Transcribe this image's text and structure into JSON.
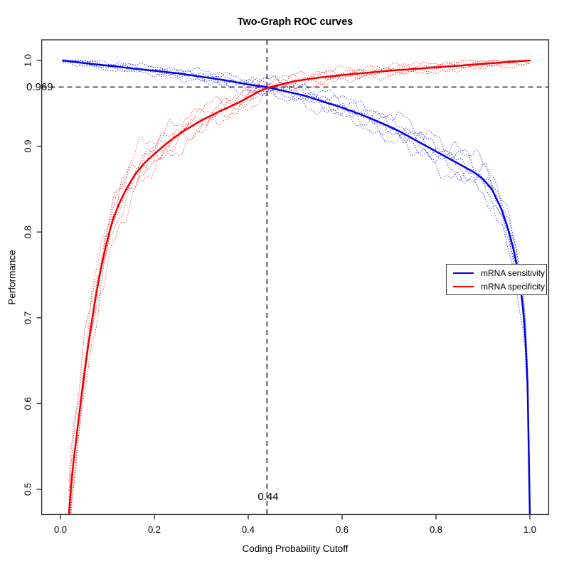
{
  "chart_data": {
    "type": "line",
    "title": "Two-Graph ROC curves",
    "xlabel": "Coding Probability Cutoff",
    "ylabel": "Performance",
    "xlim": [
      0.0,
      1.0
    ],
    "ylim": [
      0.471,
      1.0
    ],
    "grid": false,
    "frame_color": "#333333",
    "x_ticks": [
      {
        "v": 0.0,
        "label": "0.0"
      },
      {
        "v": 0.2,
        "label": "0.2"
      },
      {
        "v": 0.4,
        "label": "0.4"
      },
      {
        "v": 0.6,
        "label": "0.6"
      },
      {
        "v": 0.8,
        "label": "0.8"
      },
      {
        "v": 1.0,
        "label": "1.0"
      }
    ],
    "y_ticks": [
      {
        "v": 0.5,
        "label": "0.5"
      },
      {
        "v": 0.6,
        "label": "0.6"
      },
      {
        "v": 0.7,
        "label": "0.7"
      },
      {
        "v": 0.8,
        "label": "0.8"
      },
      {
        "v": 0.9,
        "label": "0.9"
      },
      {
        "v": 1.0,
        "label": "1.0"
      }
    ],
    "annotations": {
      "cutoff": {
        "value": 0.44,
        "label": "0.44"
      },
      "performance": {
        "value": 0.969,
        "label": "0.969"
      },
      "line_color": "#2a2a2a",
      "line_style": "dashed"
    },
    "series": [
      {
        "name": "mRNA sensitivity",
        "color": "#0000e8",
        "style": "solid-mean-with-dotted-replicates",
        "replicates": 6,
        "points": [
          [
            0.005,
            1.0
          ],
          [
            0.05,
            0.997
          ],
          [
            0.1,
            0.994
          ],
          [
            0.15,
            0.991
          ],
          [
            0.2,
            0.988
          ],
          [
            0.25,
            0.985
          ],
          [
            0.3,
            0.981
          ],
          [
            0.35,
            0.977
          ],
          [
            0.4,
            0.972
          ],
          [
            0.44,
            0.969
          ],
          [
            0.48,
            0.964
          ],
          [
            0.52,
            0.959
          ],
          [
            0.56,
            0.952
          ],
          [
            0.6,
            0.945
          ],
          [
            0.64,
            0.937
          ],
          [
            0.68,
            0.928
          ],
          [
            0.72,
            0.918
          ],
          [
            0.76,
            0.906
          ],
          [
            0.8,
            0.894
          ],
          [
            0.84,
            0.882
          ],
          [
            0.86,
            0.876
          ],
          [
            0.88,
            0.87
          ],
          [
            0.9,
            0.862
          ],
          [
            0.92,
            0.849
          ],
          [
            0.94,
            0.826
          ],
          [
            0.955,
            0.801
          ],
          [
            0.965,
            0.78
          ],
          [
            0.975,
            0.754
          ],
          [
            0.982,
            0.728
          ],
          [
            0.988,
            0.698
          ],
          [
            0.992,
            0.664
          ],
          [
            0.995,
            0.624
          ],
          [
            0.997,
            0.578
          ],
          [
            0.9985,
            0.525
          ],
          [
            1.0,
            0.47
          ]
        ]
      },
      {
        "name": "mRNA specificity",
        "color": "#ee0000",
        "style": "solid-mean-with-dotted-replicates",
        "replicates": 6,
        "points": [
          [
            0.018,
            0.471
          ],
          [
            0.025,
            0.52
          ],
          [
            0.035,
            0.565
          ],
          [
            0.045,
            0.61
          ],
          [
            0.055,
            0.652
          ],
          [
            0.065,
            0.69
          ],
          [
            0.075,
            0.724
          ],
          [
            0.085,
            0.754
          ],
          [
            0.095,
            0.78
          ],
          [
            0.11,
            0.812
          ],
          [
            0.125,
            0.833
          ],
          [
            0.14,
            0.85
          ],
          [
            0.16,
            0.868
          ],
          [
            0.18,
            0.881
          ],
          [
            0.2,
            0.891
          ],
          [
            0.23,
            0.905
          ],
          [
            0.26,
            0.917
          ],
          [
            0.3,
            0.93
          ],
          [
            0.34,
            0.941
          ],
          [
            0.38,
            0.951
          ],
          [
            0.42,
            0.963
          ],
          [
            0.44,
            0.968
          ],
          [
            0.47,
            0.972
          ],
          [
            0.5,
            0.976
          ],
          [
            0.55,
            0.98
          ],
          [
            0.6,
            0.983
          ],
          [
            0.65,
            0.9855
          ],
          [
            0.7,
            0.988
          ],
          [
            0.75,
            0.99
          ],
          [
            0.8,
            0.992
          ],
          [
            0.85,
            0.994
          ],
          [
            0.9,
            0.996
          ],
          [
            0.95,
            0.998
          ],
          [
            1.0,
            1.0
          ]
        ]
      }
    ],
    "legend": {
      "position": "right-middle",
      "entries": [
        {
          "label": "mRNA sensitivity",
          "color": "#0000e8"
        },
        {
          "label": "mRNA specificity",
          "color": "#ee0000"
        }
      ]
    }
  }
}
